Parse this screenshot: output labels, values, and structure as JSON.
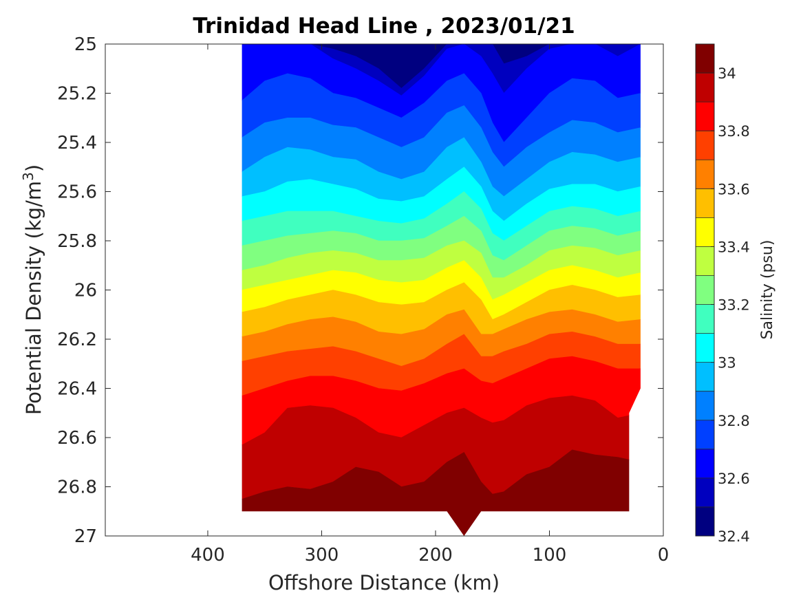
{
  "chart_data": {
    "type": "contourf",
    "title": "Trinidad Head Line , 2023/01/21",
    "xlabel": "Offshore Distance (km)",
    "ylabel_main": "Potential Density (kg/m",
    "ylabel_sup": "3",
    "ylabel_close": ")",
    "xlim": [
      490,
      0
    ],
    "ylim": [
      25,
      27
    ],
    "x_ticks": [
      "400",
      "300",
      "200",
      "100",
      "0"
    ],
    "x_tick_values": [
      400,
      300,
      200,
      100,
      0
    ],
    "y_ticks": [
      "25",
      "25.2",
      "25.4",
      "25.6",
      "25.8",
      "26",
      "26.2",
      "26.4",
      "26.6",
      "26.8",
      "27"
    ],
    "y_tick_values": [
      25,
      25.2,
      25.4,
      25.6,
      25.8,
      26,
      26.2,
      26.4,
      26.6,
      26.8,
      27
    ],
    "colorbar": {
      "label": "Salinity (psu)",
      "range": [
        32.4,
        34.1
      ],
      "ticks": [
        "32.4",
        "32.6",
        "32.8",
        "33",
        "33.2",
        "33.4",
        "33.6",
        "33.8",
        "34"
      ],
      "tick_values": [
        32.4,
        32.6,
        32.8,
        33.0,
        33.2,
        33.4,
        33.6,
        33.8,
        34.0
      ],
      "levels": [
        32.4,
        32.5,
        32.6,
        32.7,
        32.8,
        32.9,
        33.0,
        33.1,
        33.2,
        33.3,
        33.4,
        33.5,
        33.6,
        33.7,
        33.8,
        33.9,
        34.0,
        34.1
      ],
      "colormap": "jet"
    },
    "data_extent_x_km": [
      370,
      20
    ],
    "salinity_isolines": {
      "x_km": [
        370,
        350,
        330,
        310,
        290,
        270,
        250,
        230,
        210,
        190,
        175,
        160,
        150,
        140,
        120,
        100,
        80,
        60,
        40,
        20
      ],
      "contours": [
        {
          "level": 32.5,
          "sigma": [
            25.0,
            25.0,
            25.0,
            25.0,
            25.02,
            25.05,
            25.1,
            25.18,
            25.1,
            25.0,
            25.0,
            25.0,
            25.0,
            25.08,
            25.05,
            25.0,
            25.0,
            25.0,
            25.0,
            25.0
          ]
        },
        {
          "level": 32.6,
          "sigma": [
            25.0,
            25.0,
            25.0,
            25.0,
            25.06,
            25.1,
            25.15,
            25.21,
            25.13,
            25.02,
            25.0,
            25.05,
            25.12,
            25.2,
            25.1,
            25.02,
            25.0,
            25.0,
            25.05,
            25.0
          ]
        },
        {
          "level": 32.7,
          "sigma": [
            25.23,
            25.15,
            25.12,
            25.14,
            25.2,
            25.22,
            25.26,
            25.3,
            25.24,
            25.15,
            25.12,
            25.2,
            25.32,
            25.4,
            25.3,
            25.2,
            25.14,
            25.15,
            25.22,
            25.2
          ]
        },
        {
          "level": 32.8,
          "sigma": [
            25.38,
            25.32,
            25.3,
            25.3,
            25.33,
            25.34,
            25.38,
            25.42,
            25.38,
            25.28,
            25.25,
            25.34,
            25.44,
            25.5,
            25.42,
            25.36,
            25.31,
            25.32,
            25.36,
            25.34
          ]
        },
        {
          "level": 32.9,
          "sigma": [
            25.52,
            25.46,
            25.42,
            25.43,
            25.46,
            25.47,
            25.52,
            25.55,
            25.52,
            25.42,
            25.38,
            25.48,
            25.58,
            25.62,
            25.55,
            25.48,
            25.44,
            25.45,
            25.48,
            25.46
          ]
        },
        {
          "level": 33.0,
          "sigma": [
            25.62,
            25.6,
            25.56,
            25.55,
            25.57,
            25.59,
            25.63,
            25.64,
            25.62,
            25.55,
            25.5,
            25.58,
            25.68,
            25.72,
            25.65,
            25.59,
            25.57,
            25.57,
            25.6,
            25.58
          ]
        },
        {
          "level": 33.1,
          "sigma": [
            25.72,
            25.7,
            25.68,
            25.68,
            25.68,
            25.7,
            25.72,
            25.73,
            25.71,
            25.65,
            25.6,
            25.67,
            25.77,
            25.8,
            25.74,
            25.68,
            25.66,
            25.67,
            25.7,
            25.68
          ]
        },
        {
          "level": 33.2,
          "sigma": [
            25.82,
            25.8,
            25.78,
            25.77,
            25.76,
            25.77,
            25.8,
            25.8,
            25.79,
            25.74,
            25.7,
            25.76,
            25.86,
            25.88,
            25.82,
            25.76,
            25.74,
            25.75,
            25.78,
            25.76
          ]
        },
        {
          "level": 33.3,
          "sigma": [
            25.92,
            25.9,
            25.87,
            25.85,
            25.84,
            25.85,
            25.88,
            25.88,
            25.87,
            25.82,
            25.8,
            25.85,
            25.95,
            25.95,
            25.9,
            25.84,
            25.82,
            25.83,
            25.86,
            25.84
          ]
        },
        {
          "level": 33.4,
          "sigma": [
            26.0,
            25.98,
            25.96,
            25.94,
            25.92,
            25.93,
            25.96,
            25.97,
            25.96,
            25.91,
            25.88,
            25.95,
            26.04,
            26.02,
            25.97,
            25.92,
            25.9,
            25.92,
            25.95,
            25.93
          ]
        },
        {
          "level": 33.5,
          "sigma": [
            26.09,
            26.07,
            26.04,
            26.02,
            26.0,
            26.02,
            26.05,
            26.06,
            26.05,
            26.0,
            25.97,
            26.04,
            26.12,
            26.1,
            26.05,
            26.0,
            25.98,
            26.0,
            26.03,
            26.02
          ]
        },
        {
          "level": 33.6,
          "sigma": [
            26.19,
            26.17,
            26.14,
            26.12,
            26.11,
            26.13,
            26.17,
            26.18,
            26.16,
            26.1,
            26.08,
            26.18,
            26.18,
            26.16,
            26.12,
            26.09,
            26.08,
            26.1,
            26.13,
            26.12
          ]
        },
        {
          "level": 33.7,
          "sigma": [
            26.29,
            26.27,
            26.25,
            26.24,
            26.23,
            26.25,
            26.28,
            26.31,
            26.28,
            26.22,
            26.18,
            26.27,
            26.27,
            26.25,
            26.22,
            26.18,
            26.17,
            26.19,
            26.22,
            26.22
          ]
        },
        {
          "level": 33.8,
          "sigma": [
            26.43,
            26.4,
            26.37,
            26.35,
            26.35,
            26.37,
            26.4,
            26.41,
            26.38,
            26.34,
            26.32,
            26.37,
            26.38,
            26.36,
            26.32,
            26.28,
            26.27,
            26.29,
            26.32,
            26.32
          ]
        },
        {
          "level": 33.9,
          "sigma": [
            26.63,
            26.58,
            26.48,
            26.47,
            26.48,
            26.52,
            26.58,
            26.6,
            26.55,
            26.5,
            26.48,
            26.52,
            26.54,
            26.53,
            26.47,
            26.44,
            26.43,
            26.45,
            26.52,
            26.5
          ]
        },
        {
          "level": 34.0,
          "sigma": [
            26.85,
            26.82,
            26.8,
            26.81,
            26.78,
            26.72,
            26.74,
            26.8,
            26.78,
            26.7,
            26.66,
            26.78,
            26.83,
            26.82,
            26.75,
            26.72,
            26.65,
            26.67,
            26.68,
            26.7
          ]
        }
      ]
    }
  }
}
